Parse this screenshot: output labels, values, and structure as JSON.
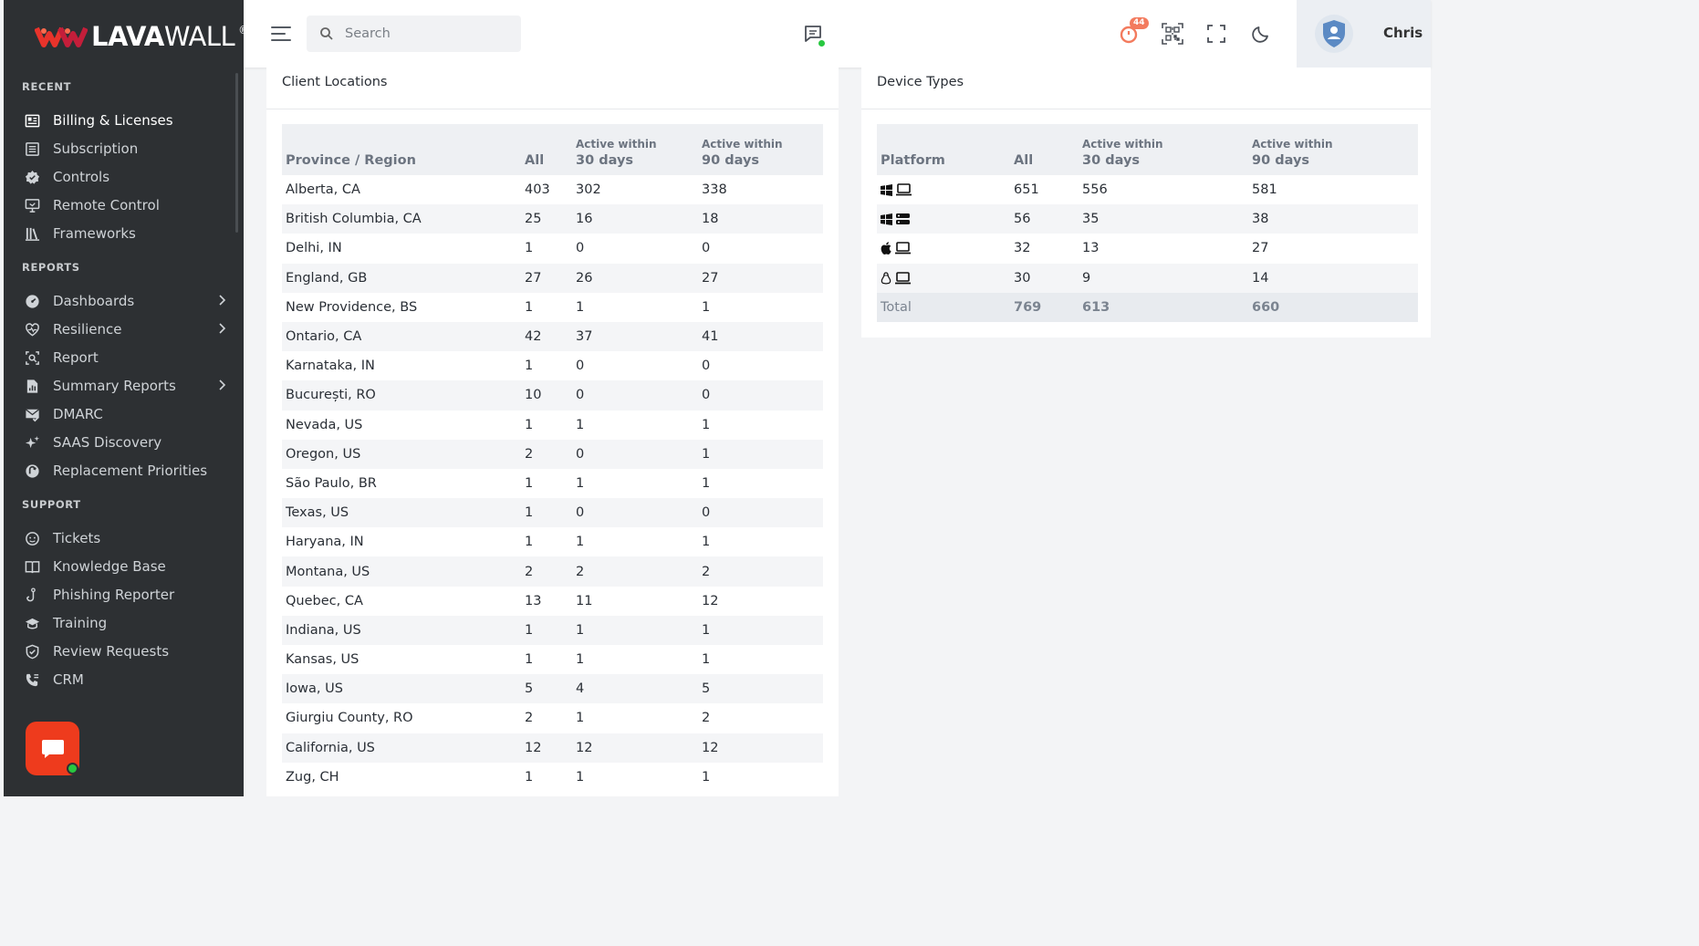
{
  "brand": {
    "name_bold": "LAVA",
    "name_thin": "WALL",
    "mark": "®"
  },
  "sidebar": {
    "sections": [
      {
        "title": "RECENT"
      },
      {
        "title": "REPORTS"
      },
      {
        "title": "SUPPORT"
      }
    ],
    "recent": [
      {
        "label": "Billing & Licenses",
        "icon": "billing-icon",
        "active": true
      },
      {
        "label": "Subscription",
        "icon": "subscription-icon"
      },
      {
        "label": "Controls",
        "icon": "controls-icon"
      },
      {
        "label": "Remote Control",
        "icon": "remote-control-icon"
      },
      {
        "label": "Frameworks",
        "icon": "frameworks-icon"
      }
    ],
    "reports": [
      {
        "label": "Dashboards",
        "icon": "dashboard-icon",
        "submenu": true
      },
      {
        "label": "Resilience",
        "icon": "heart-icon",
        "submenu": true
      },
      {
        "label": "Report",
        "icon": "report-search-icon"
      },
      {
        "label": "Summary Reports",
        "icon": "summary-report-icon",
        "submenu": true
      },
      {
        "label": "DMARC",
        "icon": "mail-check-icon"
      },
      {
        "label": "SAAS Discovery",
        "icon": "sparkle-icon"
      },
      {
        "label": "Replacement Priorities",
        "icon": "priorities-icon"
      }
    ],
    "support": [
      {
        "label": "Tickets",
        "icon": "ticket-icon"
      },
      {
        "label": "Knowledge Base",
        "icon": "book-icon"
      },
      {
        "label": "Phishing Reporter",
        "icon": "hook-icon"
      },
      {
        "label": "Training",
        "icon": "graduation-cap-icon"
      },
      {
        "label": "Review Requests",
        "icon": "shield-check-icon"
      },
      {
        "label": "CRM",
        "icon": "phone-book-icon"
      }
    ]
  },
  "topbar": {
    "search_placeholder": "Search",
    "notification_count": "44",
    "user_name": "Chris"
  },
  "colors": {
    "accent": "#ee3b1d",
    "sidebar_bg": "#2d3033",
    "online": "#28c840",
    "badge": "#f37b5e"
  },
  "client_locations": {
    "title": "Client Locations",
    "headers": {
      "region": "Province / Region",
      "all": "All",
      "active_prefix": "Active within",
      "d30": "30 days",
      "d90": "90 days"
    },
    "rows": [
      [
        "Alberta, CA",
        "403",
        "302",
        "338"
      ],
      [
        "British Columbia, CA",
        "25",
        "16",
        "18"
      ],
      [
        "Delhi, IN",
        "1",
        "0",
        "0"
      ],
      [
        "England, GB",
        "27",
        "26",
        "27"
      ],
      [
        "New Providence, BS",
        "1",
        "1",
        "1"
      ],
      [
        "Ontario, CA",
        "42",
        "37",
        "41"
      ],
      [
        "Karnataka, IN",
        "1",
        "0",
        "0"
      ],
      [
        "București, RO",
        "10",
        "0",
        "0"
      ],
      [
        "Nevada, US",
        "1",
        "1",
        "1"
      ],
      [
        "Oregon, US",
        "2",
        "0",
        "1"
      ],
      [
        "São Paulo, BR",
        "1",
        "1",
        "1"
      ],
      [
        "Texas, US",
        "1",
        "0",
        "0"
      ],
      [
        "Haryana, IN",
        "1",
        "1",
        "1"
      ],
      [
        "Montana, US",
        "2",
        "2",
        "2"
      ],
      [
        "Quebec, CA",
        "13",
        "11",
        "12"
      ],
      [
        "Indiana, US",
        "1",
        "1",
        "1"
      ],
      [
        "Kansas, US",
        "1",
        "1",
        "1"
      ],
      [
        "Iowa, US",
        "5",
        "4",
        "5"
      ],
      [
        "Giurgiu County, RO",
        "2",
        "1",
        "2"
      ],
      [
        "California, US",
        "12",
        "12",
        "12"
      ],
      [
        "Zug, CH",
        "1",
        "1",
        "1"
      ]
    ]
  },
  "device_types": {
    "title": "Device Types",
    "headers": {
      "platform": "Platform",
      "all": "All",
      "active_prefix": "Active within",
      "d30": "30 days",
      "d90": "90 days"
    },
    "rows": [
      {
        "os_icon": "windows-icon",
        "device_icon": "laptop-icon",
        "values": [
          "651",
          "556",
          "581"
        ]
      },
      {
        "os_icon": "windows-icon",
        "device_icon": "server-icon",
        "values": [
          "56",
          "35",
          "38"
        ]
      },
      {
        "os_icon": "apple-icon",
        "device_icon": "laptop-icon",
        "values": [
          "32",
          "13",
          "27"
        ]
      },
      {
        "os_icon": "linux-icon",
        "device_icon": "laptop-icon",
        "values": [
          "30",
          "9",
          "14"
        ]
      }
    ],
    "total": {
      "label": "Total",
      "values": [
        "769",
        "613",
        "660"
      ]
    }
  }
}
